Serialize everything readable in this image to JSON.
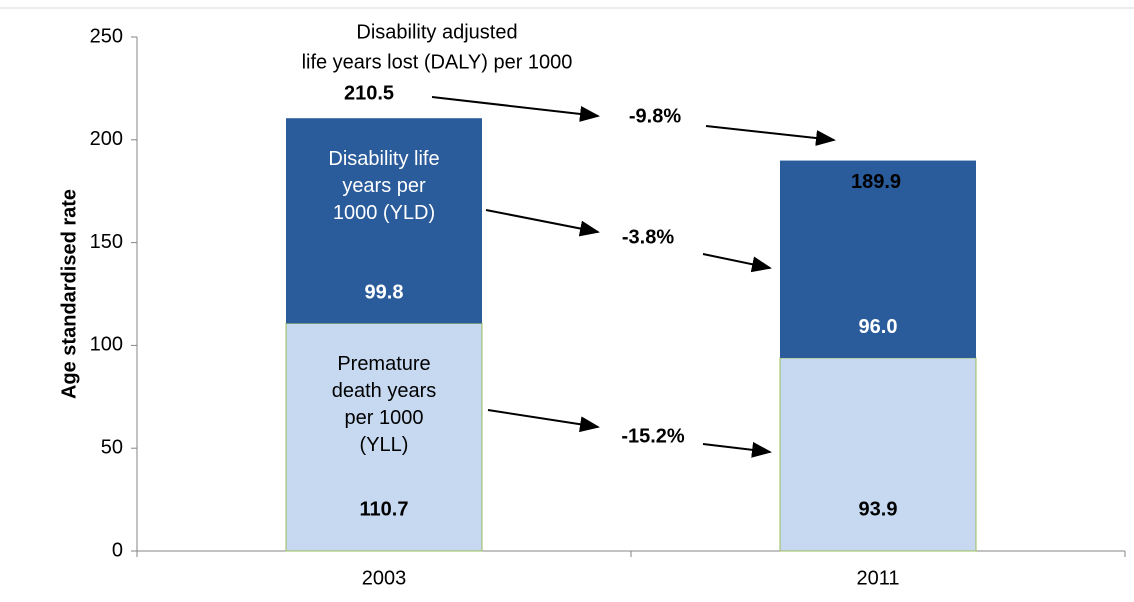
{
  "chart_data": {
    "type": "stacked_bar",
    "ylabel": "Age standardised rate",
    "categories": [
      "2003",
      "2011"
    ],
    "series": [
      {
        "name": "Premature death years per 1000 (YLL)",
        "color": "#c6d9f1",
        "values": [
          110.7,
          93.9
        ]
      },
      {
        "name": "Disability life years per 1000 (YLD)",
        "color": "#2a5b9b",
        "values": [
          99.8,
          96.0
        ],
        "value_labels": [
          "99.8",
          "96.0"
        ]
      }
    ],
    "totals": [
      210.5,
      189.9
    ],
    "total_label": [
      "Disability adjusted",
      "life years lost (DALY) per 1000"
    ],
    "changes": [
      "-9.8%",
      "-3.8%",
      "-15.2%"
    ],
    "ylim": [
      0,
      250
    ],
    "yticks": [
      0,
      50,
      100,
      150,
      200,
      250
    ]
  }
}
